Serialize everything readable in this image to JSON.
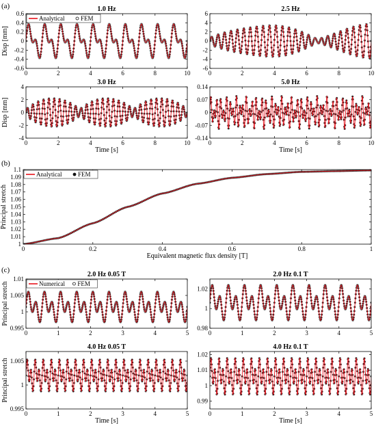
{
  "colors": {
    "analytical": "#e8121b",
    "fem": "#111111",
    "axis": "#000000"
  },
  "panel_labels": {
    "a": "(a)",
    "b": "(b)",
    "c": "(c)"
  },
  "chart_data": [
    {
      "type": "line",
      "panel": "a",
      "title": "1.0 Hz",
      "xlabel": "",
      "ylabel": "Disp [mm]",
      "xlim": [
        0,
        10
      ],
      "ylim": [
        -0.6,
        0.6
      ],
      "xticks": [
        0,
        2,
        4,
        6,
        8,
        10
      ],
      "xticklabels": [
        "0",
        "2",
        "4",
        "6",
        "8",
        "10"
      ],
      "yticks": [
        -0.6,
        -0.4,
        -0.2,
        0,
        0.2,
        0.4,
        0.6
      ],
      "yticklabels": [
        "-0.6",
        "-0.4",
        "-0.2",
        "0",
        "0.2",
        "0.4",
        "0.6"
      ],
      "legend": [
        "Analytical",
        "FEM"
      ],
      "legend_position": "top-left",
      "signal": {
        "kind": "sum",
        "components": [
          [
            0.25,
            1.0
          ],
          [
            0.18,
            2.0
          ]
        ]
      },
      "series": [
        {
          "name": "Analytical",
          "style": "line"
        },
        {
          "name": "FEM",
          "style": "markers"
        }
      ]
    },
    {
      "type": "line",
      "panel": "a",
      "title": "2.5 Hz",
      "xlabel": "",
      "ylabel": "",
      "xlim": [
        0,
        10
      ],
      "ylim": [
        -6,
        6
      ],
      "xticks": [
        0,
        2,
        4,
        6,
        8,
        10
      ],
      "xticklabels": [
        "0",
        "2",
        "4",
        "6",
        "8",
        "10"
      ],
      "yticks": [
        -6,
        -4,
        -2,
        0,
        2,
        4,
        6
      ],
      "yticklabels": [
        "-6",
        "-4",
        "-2",
        "0",
        "2",
        "4",
        "6"
      ],
      "signal": {
        "kind": "beat",
        "amplitude": 3.5,
        "freqs": [
          2.5,
          2.3
        ],
        "offset_hz": 0.15
      },
      "series": [
        {
          "name": "Analytical",
          "style": "line"
        },
        {
          "name": "FEM",
          "style": "markers"
        }
      ]
    },
    {
      "type": "line",
      "panel": "a",
      "title": "3.0 Hz",
      "xlabel": "Time [s]",
      "ylabel": "Disp [mm]",
      "xlim": [
        0,
        10
      ],
      "ylim": [
        -4,
        4
      ],
      "xticks": [
        0,
        2,
        4,
        6,
        8,
        10
      ],
      "xticklabels": [
        "0",
        "2",
        "4",
        "6",
        "8",
        "10"
      ],
      "yticks": [
        -4,
        -2,
        0,
        2,
        4
      ],
      "yticklabels": [
        "-4",
        "-2",
        "0",
        "2",
        "4"
      ],
      "signal": {
        "kind": "beat",
        "amplitude": 2.4,
        "freqs": [
          3.0,
          2.7
        ],
        "offset_hz": 0.3
      },
      "series": [
        {
          "name": "Analytical",
          "style": "line"
        },
        {
          "name": "FEM",
          "style": "markers"
        }
      ]
    },
    {
      "type": "line",
      "panel": "a",
      "title": "5.0 Hz",
      "xlabel": "Time [s]",
      "ylabel": "",
      "xlim": [
        0,
        10
      ],
      "ylim": [
        -0.14,
        0.14
      ],
      "xticks": [
        0,
        2,
        4,
        6,
        8,
        10
      ],
      "xticklabels": [
        "0",
        "2",
        "4",
        "6",
        "8",
        "10"
      ],
      "yticks": [
        -0.14,
        -0.07,
        0,
        0.07,
        0.14
      ],
      "yticklabels": [
        "-0.14",
        "-0.07",
        "0",
        "0.07",
        "0.14"
      ],
      "signal": {
        "kind": "sum",
        "components": [
          [
            0.05,
            5.0
          ],
          [
            0.04,
            3.2
          ]
        ]
      },
      "series": [
        {
          "name": "Analytical",
          "style": "line"
        },
        {
          "name": "FEM",
          "style": "markers"
        }
      ]
    },
    {
      "type": "line",
      "panel": "b",
      "title": "",
      "xlabel": "Equivalent magnetic flux density [T]",
      "ylabel": "Principal stretch",
      "xlim": [
        0,
        1
      ],
      "ylim": [
        1,
        1.1
      ],
      "xticks": [
        0,
        0.2,
        0.4,
        0.6,
        0.8,
        1
      ],
      "xticklabels": [
        "0",
        "0.2",
        "0.4",
        "0.6",
        "0.8",
        "1"
      ],
      "yticks": [
        1,
        1.01,
        1.02,
        1.03,
        1.04,
        1.05,
        1.06,
        1.07,
        1.08,
        1.09,
        1.1
      ],
      "yticklabels": [
        "1",
        "1.01",
        "1.02",
        "1.03",
        "1.04",
        "1.05",
        "1.06",
        "1.07",
        "1.08",
        "1.09",
        "1.1"
      ],
      "legend": [
        "Analytical",
        "FEM"
      ],
      "legend_position": "top-left",
      "curve_samples": {
        "x": [
          0,
          0.1,
          0.2,
          0.3,
          0.4,
          0.5,
          0.6,
          0.7,
          0.8,
          0.9,
          1.0
        ],
        "y": [
          1.0,
          1.008,
          1.028,
          1.05,
          1.068,
          1.081,
          1.089,
          1.094,
          1.097,
          1.098,
          1.099
        ]
      },
      "series": [
        {
          "name": "Analytical",
          "style": "line"
        },
        {
          "name": "FEM",
          "style": "markers"
        }
      ]
    },
    {
      "type": "line",
      "panel": "c",
      "title": "2.0 Hz 0.05 T",
      "xlabel": "",
      "ylabel": "Principal stretch",
      "xlim": [
        0,
        5
      ],
      "ylim": [
        0.995,
        1.01
      ],
      "xticks": [
        0,
        1,
        2,
        3,
        4,
        5
      ],
      "xticklabels": [
        "0",
        "1",
        "2",
        "3",
        "4",
        "5"
      ],
      "yticks": [
        0.995,
        1,
        1.005,
        1.01
      ],
      "yticklabels": [
        "0.995",
        "1",
        "1.005",
        "1.01"
      ],
      "legend": [
        "Numerical",
        "FEM"
      ],
      "legend_position": "top-left",
      "signal": {
        "kind": "stretch",
        "base": 1.0015,
        "components": [
          [
            0.003,
            4.0
          ],
          [
            0.0022,
            2.0
          ]
        ]
      },
      "series": [
        {
          "name": "Numerical",
          "style": "line"
        },
        {
          "name": "FEM",
          "style": "markers"
        }
      ]
    },
    {
      "type": "line",
      "panel": "c",
      "title": "2.0 Hz 0.1 T",
      "xlabel": "",
      "ylabel": "",
      "xlim": [
        0,
        5
      ],
      "ylim": [
        0.98,
        1.03
      ],
      "xticks": [
        0,
        1,
        2,
        3,
        4,
        5
      ],
      "xticklabels": [
        "0",
        "1",
        "2",
        "3",
        "4",
        "5"
      ],
      "yticks": [
        0.98,
        1,
        1.02
      ],
      "yticklabels": [
        "0.98",
        "1",
        "1.02"
      ],
      "signal": {
        "kind": "stretch",
        "base": 1.006,
        "components": [
          [
            0.012,
            4.0
          ],
          [
            0.008,
            2.0
          ]
        ]
      },
      "series": [
        {
          "name": "Numerical",
          "style": "line"
        },
        {
          "name": "FEM",
          "style": "markers"
        }
      ]
    },
    {
      "type": "line",
      "panel": "c",
      "title": "4.0 Hz 0.05 T",
      "xlabel": "Time [s]",
      "ylabel": "Principal stretch",
      "xlim": [
        0,
        5
      ],
      "ylim": [
        0.995,
        1.007
      ],
      "xticks": [
        0,
        1,
        2,
        3,
        4,
        5
      ],
      "xticklabels": [
        "0",
        "1",
        "2",
        "3",
        "4",
        "5"
      ],
      "yticks": [
        0.995,
        1,
        1.005
      ],
      "yticklabels": [
        "0.995",
        "1",
        "1.005"
      ],
      "signal": {
        "kind": "stretch",
        "base": 1.002,
        "components": [
          [
            0.0022,
            8.0
          ],
          [
            0.0015,
            4.0
          ]
        ]
      },
      "series": [
        {
          "name": "Numerical",
          "style": "line"
        },
        {
          "name": "FEM",
          "style": "markers"
        }
      ]
    },
    {
      "type": "line",
      "panel": "c",
      "title": "4.0 Hz 0.1 T",
      "xlabel": "Time [s]",
      "ylabel": "",
      "xlim": [
        0,
        5
      ],
      "ylim": [
        0.985,
        1.022
      ],
      "xticks": [
        0,
        1,
        2,
        3,
        4,
        5
      ],
      "xticklabels": [
        "0",
        "1",
        "2",
        "3",
        "4",
        "5"
      ],
      "yticks": [
        0.99,
        1,
        1.01,
        1.02
      ],
      "yticklabels": [
        "0.99",
        "1",
        "1.01",
        "1.02"
      ],
      "signal": {
        "kind": "stretch",
        "base": 1.006,
        "components": [
          [
            0.008,
            8.0
          ],
          [
            0.005,
            4.0
          ]
        ]
      },
      "series": [
        {
          "name": "Numerical",
          "style": "line"
        },
        {
          "name": "FEM",
          "style": "markers"
        }
      ]
    }
  ]
}
